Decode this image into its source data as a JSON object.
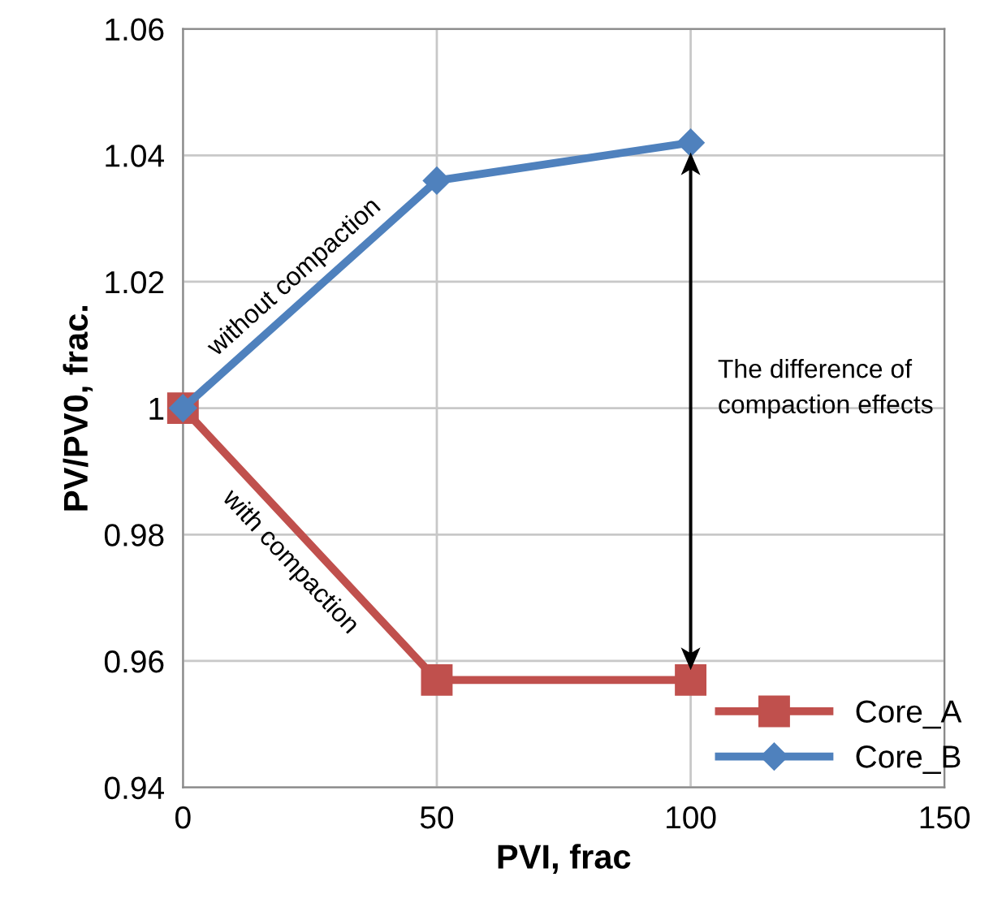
{
  "chart_data": {
    "type": "line",
    "xlabel": "PVI, frac",
    "ylabel": "PV/PV0, frac.",
    "series": [
      {
        "name": "Core_A",
        "color": "#c0504d",
        "marker": "square",
        "x": [
          0,
          50,
          100
        ],
        "values": [
          1.0,
          0.957,
          0.957
        ]
      },
      {
        "name": "Core_B",
        "color": "#4f81bd",
        "marker": "diamond",
        "x": [
          0,
          50,
          100
        ],
        "values": [
          1.0,
          1.036,
          1.042
        ]
      }
    ],
    "annotations": [
      "without compaction",
      "with compaction",
      "The difference of compaction effects"
    ],
    "xlim": [
      0,
      150
    ],
    "xticks": [
      0,
      50,
      100,
      150
    ],
    "ylim": [
      0.94,
      1.06
    ],
    "yticks": [
      {
        "value": 0.94,
        "label": "0.94"
      },
      {
        "value": 0.96,
        "label": "0.96"
      },
      {
        "value": 0.98,
        "label": "0.98"
      },
      {
        "value": 1.0,
        "label": "1"
      },
      {
        "value": 1.02,
        "label": "1.02"
      },
      {
        "value": 1.04,
        "label": "1.04"
      },
      {
        "value": 1.06,
        "label": "1.06"
      }
    ],
    "grid": true,
    "legend": "bottom right",
    "line_style": "solid"
  }
}
